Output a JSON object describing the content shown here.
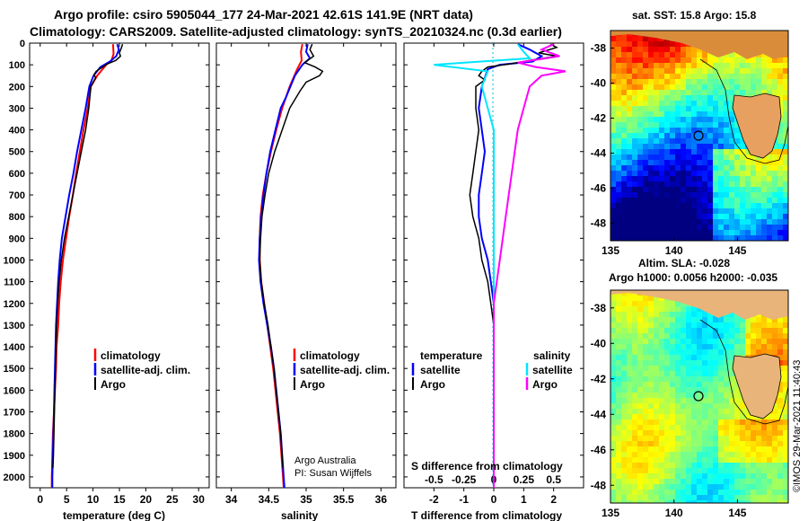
{
  "title": {
    "line1": "Argo profile: csiro 5905044_177 24-Mar-2021 42.61S 141.9E (NRT data)",
    "line2": "Climatology: CARS2009. Satellite-adjusted climatology: synTS_20210324.nc (0.3d earlier)"
  },
  "colors": {
    "argo": "#000000",
    "clim": "#ff0000",
    "sat": "#0000ff",
    "sal_sat": "#00e5ff",
    "sal_argo": "#ff00ff"
  },
  "credit": "©IMOS 29-Mar-2021 11:40:43",
  "chart_data": [
    {
      "type": "line",
      "name": "temperature",
      "xlabel": "temperature (deg C)",
      "xlim": [
        -2,
        32
      ],
      "ylim": [
        0,
        2050
      ],
      "x_ticks": [
        "0",
        "5",
        "10",
        "15",
        "20",
        "25",
        "30"
      ],
      "y_ticks": [
        "0",
        "100",
        "200",
        "300",
        "400",
        "500",
        "600",
        "700",
        "800",
        "900",
        "1000",
        "1100",
        "1200",
        "1300",
        "1400",
        "1500",
        "1600",
        "1700",
        "1800",
        "1900",
        "2000"
      ],
      "legend": [
        "climatology",
        "satellite-adj. clim.",
        "Argo"
      ],
      "series": [
        {
          "name": "climatology",
          "points": [
            [
              13.8,
              5
            ],
            [
              13.9,
              50
            ],
            [
              13.5,
              80
            ],
            [
              12.5,
              100
            ],
            [
              10.8,
              150
            ],
            [
              9.6,
              200
            ],
            [
              9.0,
              300
            ],
            [
              8.2,
              400
            ],
            [
              7.5,
              500
            ],
            [
              6.8,
              600
            ],
            [
              6.2,
              700
            ],
            [
              5.5,
              800
            ],
            [
              4.9,
              900
            ],
            [
              4.3,
              1000
            ],
            [
              3.9,
              1100
            ],
            [
              3.6,
              1200
            ],
            [
              3.4,
              1300
            ],
            [
              3.1,
              1400
            ],
            [
              3.0,
              1500
            ],
            [
              2.8,
              1600
            ],
            [
              2.6,
              1700
            ],
            [
              2.4,
              1800
            ],
            [
              2.3,
              1900
            ],
            [
              2.2,
              2000
            ],
            [
              2.2,
              2050
            ]
          ]
        },
        {
          "name": "satellite-adj. clim.",
          "points": [
            [
              14.6,
              5
            ],
            [
              14.9,
              30
            ],
            [
              14.4,
              60
            ],
            [
              13.2,
              85
            ],
            [
              11.4,
              110
            ],
            [
              10.1,
              150
            ],
            [
              9.3,
              200
            ],
            [
              8.6,
              300
            ],
            [
              7.8,
              400
            ],
            [
              7.0,
              500
            ],
            [
              6.3,
              600
            ],
            [
              5.5,
              700
            ],
            [
              4.8,
              800
            ],
            [
              4.1,
              900
            ],
            [
              3.7,
              1000
            ],
            [
              3.4,
              1100
            ],
            [
              3.2,
              1200
            ],
            [
              3.0,
              1300
            ],
            [
              2.9,
              1400
            ],
            [
              2.8,
              1500
            ],
            [
              2.7,
              1600
            ],
            [
              2.6,
              1700
            ],
            [
              2.5,
              1800
            ],
            [
              2.4,
              1900
            ],
            [
              2.3,
              2000
            ],
            [
              2.3,
              2050
            ]
          ]
        },
        {
          "name": "Argo",
          "points": [
            [
              15.6,
              5
            ],
            [
              15.4,
              20
            ],
            [
              15.0,
              45
            ],
            [
              15.2,
              60
            ],
            [
              14.3,
              80
            ],
            [
              12.8,
              95
            ],
            [
              11.8,
              110
            ],
            [
              10.6,
              130
            ],
            [
              10.2,
              145
            ],
            [
              10.5,
              160
            ],
            [
              9.6,
              200
            ],
            [
              9.2,
              300
            ],
            [
              8.6,
              400
            ],
            [
              7.8,
              500
            ],
            [
              7.0,
              600
            ],
            [
              6.2,
              700
            ],
            [
              5.4,
              800
            ],
            [
              4.6,
              900
            ],
            [
              4.0,
              1000
            ],
            [
              3.6,
              1100
            ],
            [
              3.3,
              1200
            ],
            [
              3.1,
              1300
            ],
            [
              3.0,
              1400
            ],
            [
              2.9,
              1500
            ],
            [
              2.8,
              1600
            ],
            [
              2.7,
              1700
            ],
            [
              2.6,
              1800
            ],
            [
              2.5,
              1900
            ],
            [
              2.4,
              1960
            ]
          ]
        }
      ]
    },
    {
      "type": "line",
      "name": "salinity",
      "xlabel": "salinity",
      "xlim": [
        33.8,
        36.2
      ],
      "ylim": [
        0,
        2050
      ],
      "x_ticks": [
        "34",
        "34.5",
        "35",
        "35.5",
        "36"
      ],
      "legend": [
        "climatology",
        "satellite-adj. clim.",
        "Argo"
      ],
      "annotation": [
        "Argo Australia",
        "PI: Susan Wijffels"
      ],
      "series": [
        {
          "name": "climatology",
          "points": [
            [
              34.95,
              5
            ],
            [
              34.93,
              40
            ],
            [
              34.94,
              80
            ],
            [
              34.88,
              120
            ],
            [
              34.78,
              200
            ],
            [
              34.68,
              300
            ],
            [
              34.6,
              400
            ],
            [
              34.53,
              500
            ],
            [
              34.47,
              600
            ],
            [
              34.42,
              700
            ],
            [
              34.39,
              800
            ],
            [
              34.38,
              900
            ],
            [
              34.38,
              1000
            ],
            [
              34.4,
              1100
            ],
            [
              34.44,
              1200
            ],
            [
              34.48,
              1300
            ],
            [
              34.52,
              1400
            ],
            [
              34.56,
              1500
            ],
            [
              34.59,
              1600
            ],
            [
              34.62,
              1700
            ],
            [
              34.65,
              1800
            ],
            [
              34.67,
              1900
            ],
            [
              34.69,
              2000
            ],
            [
              34.7,
              2050
            ]
          ]
        },
        {
          "name": "satellite-adj. clim.",
          "points": [
            [
              35.02,
              5
            ],
            [
              35.0,
              40
            ],
            [
              35.05,
              70
            ],
            [
              34.95,
              100
            ],
            [
              34.85,
              150
            ],
            [
              34.73,
              250
            ],
            [
              34.66,
              300
            ],
            [
              34.59,
              400
            ],
            [
              34.52,
              500
            ],
            [
              34.47,
              600
            ],
            [
              34.43,
              700
            ],
            [
              34.4,
              800
            ],
            [
              34.38,
              900
            ],
            [
              34.37,
              1000
            ],
            [
              34.39,
              1100
            ],
            [
              34.43,
              1200
            ],
            [
              34.48,
              1300
            ],
            [
              34.53,
              1400
            ],
            [
              34.57,
              1500
            ],
            [
              34.6,
              1600
            ],
            [
              34.63,
              1700
            ],
            [
              34.66,
              1800
            ],
            [
              34.68,
              1900
            ],
            [
              34.7,
              2000
            ],
            [
              34.71,
              2050
            ]
          ]
        },
        {
          "name": "Argo",
          "points": [
            [
              35.08,
              5
            ],
            [
              35.05,
              30
            ],
            [
              35.1,
              60
            ],
            [
              34.98,
              90
            ],
            [
              35.12,
              110
            ],
            [
              35.22,
              130
            ],
            [
              35.18,
              150
            ],
            [
              35.0,
              180
            ],
            [
              34.92,
              220
            ],
            [
              34.78,
              300
            ],
            [
              34.68,
              400
            ],
            [
              34.58,
              500
            ],
            [
              34.5,
              600
            ],
            [
              34.45,
              700
            ],
            [
              34.41,
              800
            ],
            [
              34.39,
              900
            ],
            [
              34.38,
              1000
            ],
            [
              34.4,
              1100
            ],
            [
              34.44,
              1200
            ],
            [
              34.49,
              1300
            ],
            [
              34.53,
              1400
            ],
            [
              34.57,
              1500
            ],
            [
              34.6,
              1600
            ],
            [
              34.63,
              1700
            ],
            [
              34.66,
              1800
            ],
            [
              34.68,
              1900
            ],
            [
              34.69,
              1960
            ]
          ]
        }
      ]
    },
    {
      "type": "line",
      "name": "difference",
      "xlabel": "T difference from climatology",
      "xlabel2": "S difference from climatology",
      "xlim": [
        -3,
        3
      ],
      "ylim": [
        0,
        2050
      ],
      "x_ticks": [
        "-2",
        "-1",
        "0",
        "1",
        "2"
      ],
      "x_ticks2": [
        "-0.5",
        "-0.25",
        "0",
        "0.25",
        "0.5"
      ],
      "legend_left_title": "temperature",
      "legend_right_title": "salinity",
      "legend_left": [
        "satellite",
        "Argo"
      ],
      "legend_right": [
        "satellite",
        "Argo"
      ],
      "series": [
        {
          "name": "T satellite",
          "points": [
            [
              0.8,
              5
            ],
            [
              1.2,
              30
            ],
            [
              1.6,
              60
            ],
            [
              1.3,
              85
            ],
            [
              0.2,
              100
            ],
            [
              -0.2,
              120
            ],
            [
              -0.4,
              200
            ],
            [
              -0.5,
              300
            ],
            [
              -0.4,
              400
            ],
            [
              -0.3,
              500
            ],
            [
              -0.4,
              600
            ],
            [
              -0.5,
              700
            ],
            [
              -0.5,
              800
            ],
            [
              -0.4,
              900
            ],
            [
              -0.2,
              1000
            ],
            [
              -0.1,
              1100
            ],
            [
              0.0,
              1200
            ],
            [
              0.0,
              1500
            ],
            [
              0.0,
              2050
            ]
          ]
        },
        {
          "name": "T Argo",
          "points": [
            [
              1.9,
              5
            ],
            [
              2.1,
              20
            ],
            [
              1.5,
              45
            ],
            [
              2.1,
              60
            ],
            [
              1.2,
              80
            ],
            [
              0.6,
              95
            ],
            [
              -0.2,
              110
            ],
            [
              -0.4,
              130
            ],
            [
              -0.5,
              150
            ],
            [
              -0.3,
              170
            ],
            [
              -0.6,
              200
            ],
            [
              -0.6,
              300
            ],
            [
              -0.5,
              400
            ],
            [
              -0.6,
              500
            ],
            [
              -0.7,
              600
            ],
            [
              -0.8,
              700
            ],
            [
              -0.7,
              800
            ],
            [
              -0.5,
              900
            ],
            [
              -0.4,
              1000
            ],
            [
              -0.2,
              1100
            ],
            [
              -0.1,
              1200
            ],
            [
              0.0,
              1300
            ],
            [
              0.0,
              2050
            ]
          ]
        },
        {
          "name": "S satellite",
          "points": [
            [
              0.2,
              5
            ],
            [
              0.25,
              40
            ],
            [
              0.3,
              70
            ],
            [
              -0.5,
              100
            ],
            [
              -0.05,
              130
            ],
            [
              -0.1,
              200
            ],
            [
              -0.05,
              300
            ],
            [
              0.0,
              400
            ],
            [
              0.0,
              2050
            ]
          ]
        },
        {
          "name": "S Argo",
          "points": [
            [
              0.5,
              5
            ],
            [
              0.4,
              30
            ],
            [
              0.55,
              60
            ],
            [
              0.2,
              90
            ],
            [
              0.35,
              110
            ],
            [
              0.6,
              130
            ],
            [
              0.4,
              150
            ],
            [
              0.3,
              200
            ],
            [
              0.25,
              300
            ],
            [
              0.2,
              400
            ],
            [
              0.15,
              600
            ],
            [
              0.1,
              800
            ],
            [
              0.05,
              1000
            ],
            [
              0.0,
              1200
            ],
            [
              0.0,
              2050
            ]
          ]
        }
      ]
    }
  ],
  "maps": [
    {
      "type": "heatmap",
      "title": "sat. SST: 15.8 Argo: 15.8",
      "x_ticks": [
        "135",
        "140",
        "145"
      ],
      "y_ticks": [
        "-38",
        "-40",
        "-42",
        "-44",
        "-46",
        "-48"
      ],
      "xlim": [
        135,
        149
      ],
      "ylim": [
        -49,
        -37
      ]
    },
    {
      "type": "heatmap",
      "title": "Altim. SLA: -0.028",
      "subtitle": "Argo h1000: 0.0056 h2000: -0.035",
      "x_ticks": [
        "135",
        "140",
        "145"
      ],
      "y_ticks": [
        "-38",
        "-40",
        "-42",
        "-44",
        "-46",
        "-48"
      ],
      "xlim": [
        135,
        149
      ],
      "ylim": [
        -49,
        -37
      ]
    }
  ]
}
